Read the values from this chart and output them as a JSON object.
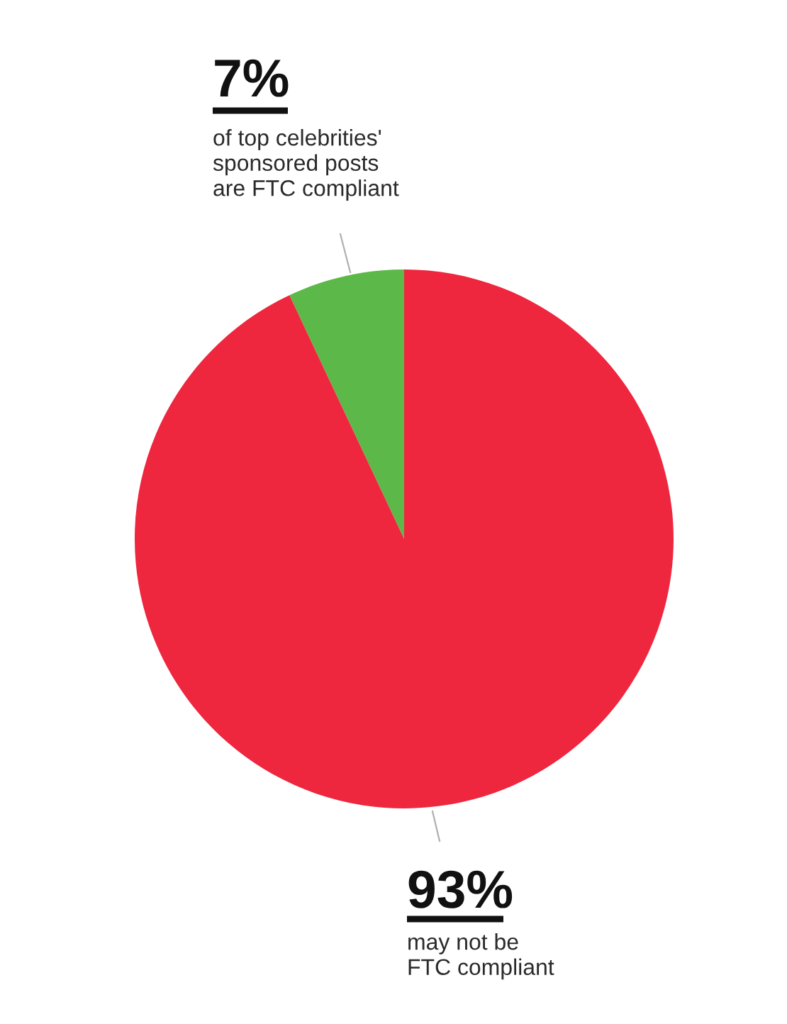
{
  "chart_data": {
    "type": "pie",
    "categories": [
      "of top celebrities'\nsponsored posts\nare FTC compliant",
      "may not be\nFTC compliant"
    ],
    "values": [
      7,
      93
    ],
    "value_labels": [
      "7%",
      "93%"
    ],
    "colors": [
      "#5db84a",
      "#ee263e"
    ]
  }
}
